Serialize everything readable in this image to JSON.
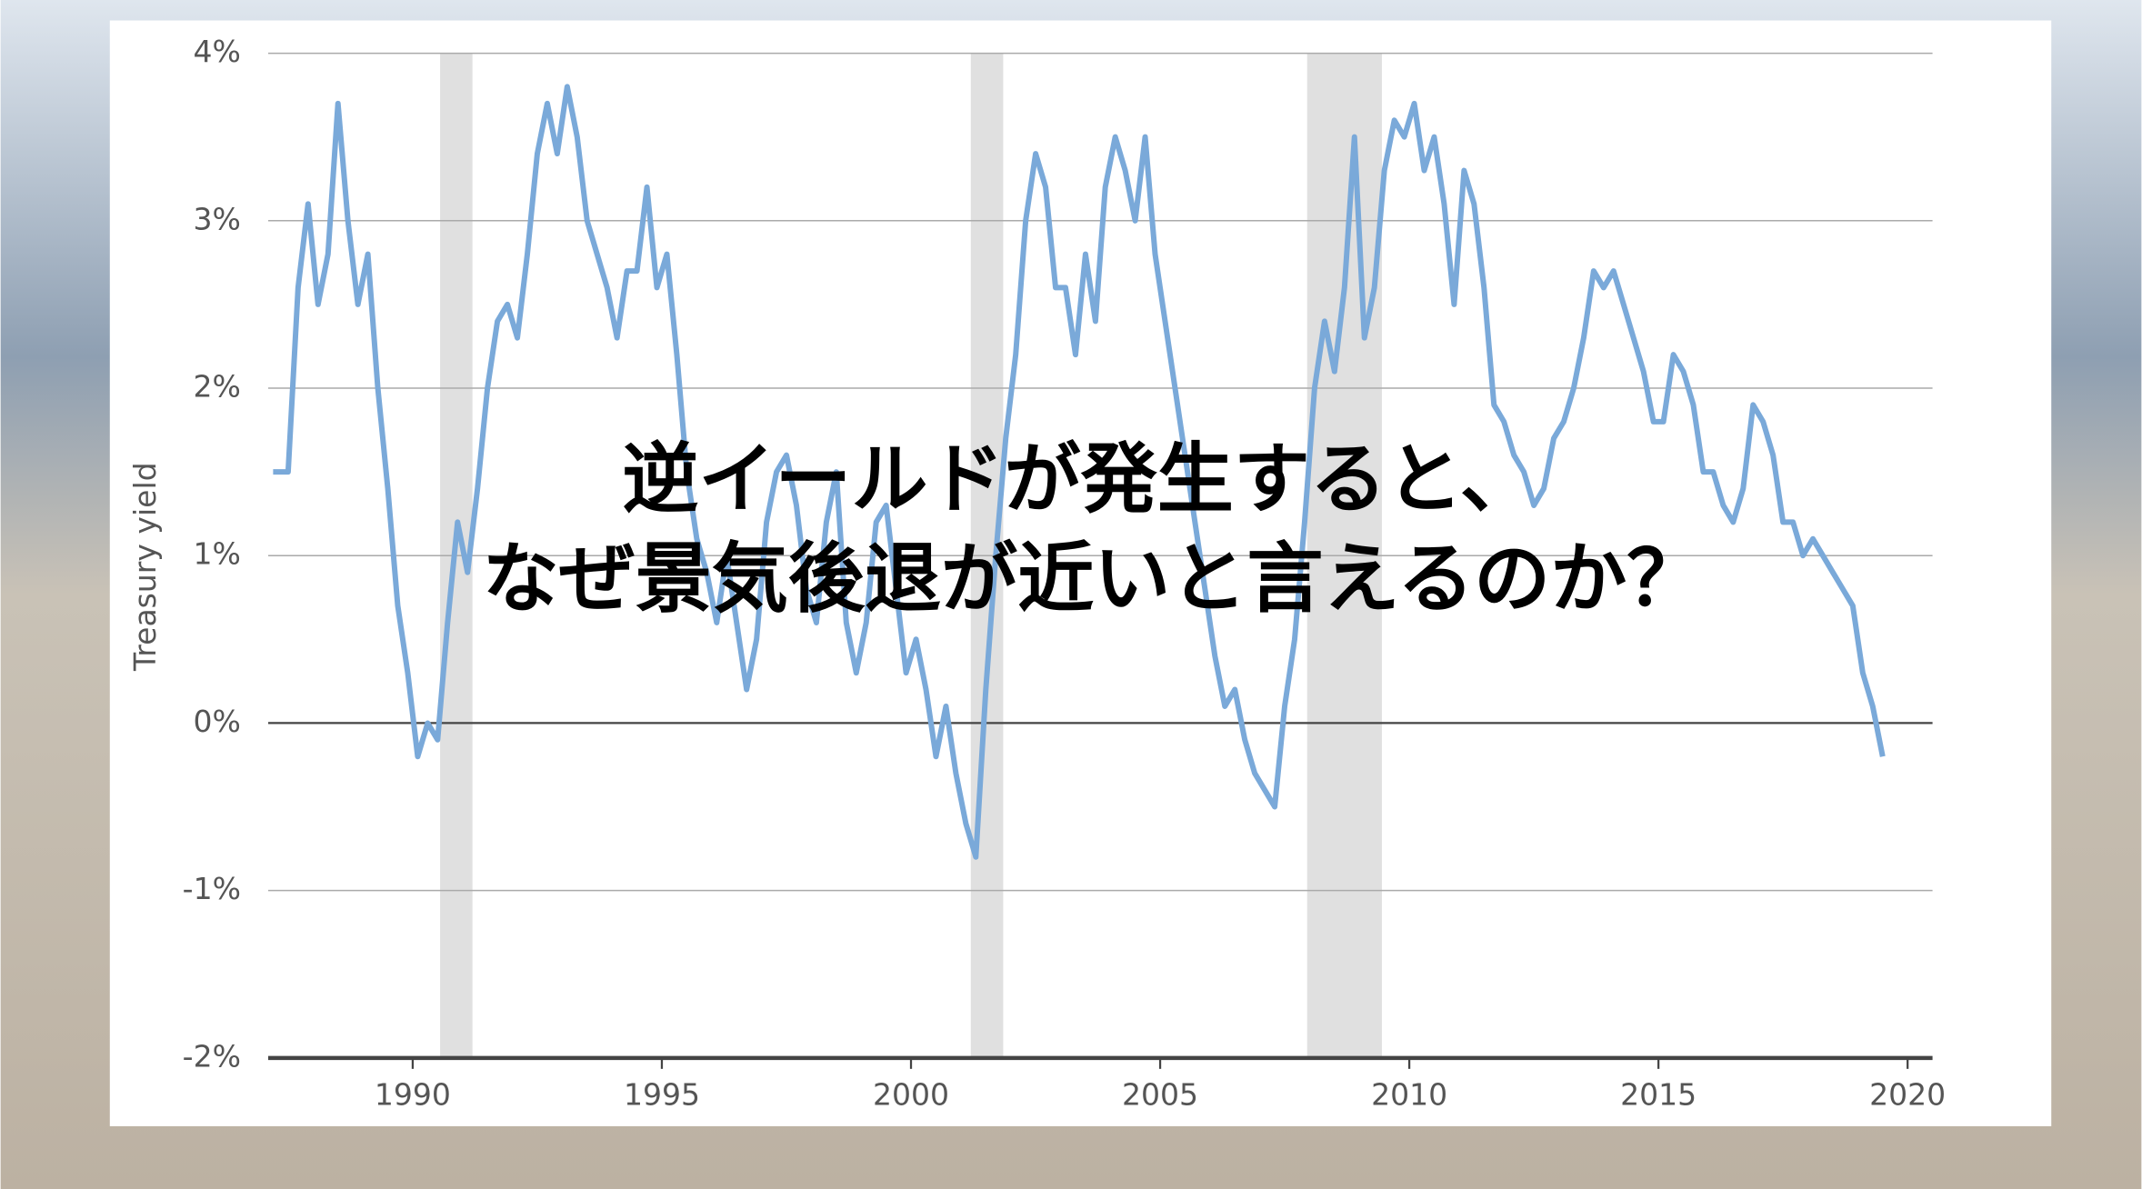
{
  "chart_data": {
    "type": "line",
    "title_lines": [
      "逆イールドが発生すると、",
      "なぜ景気後退が近いと言えるのか？"
    ],
    "ylabel": "Treasury yield",
    "xlim": [
      1987.1,
      2020.5
    ],
    "xticks": [
      1990,
      1995,
      2000,
      2005,
      2010,
      2015,
      2020
    ],
    "ylim": [
      -2,
      4
    ],
    "yticks": [
      {
        "value": -2,
        "label": "-2%"
      },
      {
        "value": -1,
        "label": "-1%"
      },
      {
        "value": 0,
        "label": "0%"
      },
      {
        "value": 1,
        "label": "1%"
      },
      {
        "value": 2,
        "label": "2%"
      },
      {
        "value": 3,
        "label": "3%"
      },
      {
        "value": 4,
        "label": "4%"
      }
    ],
    "grid": true,
    "shaded_ranges": [
      [
        1990.55,
        1991.2
      ],
      [
        2001.2,
        2001.85
      ],
      [
        2007.95,
        2009.45
      ]
    ],
    "x": [
      1987.2,
      1987.5,
      1987.7,
      1987.9,
      1988.1,
      1988.3,
      1988.5,
      1988.7,
      1988.9,
      1989.1,
      1989.3,
      1989.5,
      1989.7,
      1989.9,
      1990.1,
      1990.3,
      1990.5,
      1990.7,
      1990.9,
      1991.1,
      1991.3,
      1991.5,
      1991.7,
      1991.9,
      1992.1,
      1992.3,
      1992.5,
      1992.7,
      1992.9,
      1993.1,
      1993.3,
      1993.5,
      1993.7,
      1993.9,
      1994.1,
      1994.3,
      1994.5,
      1994.7,
      1994.9,
      1995.1,
      1995.3,
      1995.5,
      1995.7,
      1995.9,
      1996.1,
      1996.3,
      1996.5,
      1996.7,
      1996.9,
      1997.1,
      1997.3,
      1997.5,
      1997.7,
      1997.9,
      1998.1,
      1998.3,
      1998.5,
      1998.7,
      1998.9,
      1999.1,
      1999.3,
      1999.5,
      1999.7,
      1999.9,
      2000.1,
      2000.3,
      2000.5,
      2000.7,
      2000.9,
      2001.1,
      2001.3,
      2001.5,
      2001.7,
      2001.9,
      2002.1,
      2002.3,
      2002.5,
      2002.7,
      2002.9,
      2003.1,
      2003.3,
      2003.5,
      2003.7,
      2003.9,
      2004.1,
      2004.3,
      2004.5,
      2004.7,
      2004.9,
      2005.1,
      2005.3,
      2005.5,
      2005.7,
      2005.9,
      2006.1,
      2006.3,
      2006.5,
      2006.7,
      2006.9,
      2007.1,
      2007.3,
      2007.5,
      2007.7,
      2007.9,
      2008.1,
      2008.3,
      2008.5,
      2008.7,
      2008.9,
      2009.1,
      2009.3,
      2009.5,
      2009.7,
      2009.9,
      2010.1,
      2010.3,
      2010.5,
      2010.7,
      2010.9,
      2011.1,
      2011.3,
      2011.5,
      2011.7,
      2011.9,
      2012.1,
      2012.3,
      2012.5,
      2012.7,
      2012.9,
      2013.1,
      2013.3,
      2013.5,
      2013.7,
      2013.9,
      2014.1,
      2014.3,
      2014.5,
      2014.7,
      2014.9,
      2015.1,
      2015.3,
      2015.5,
      2015.7,
      2015.9,
      2016.1,
      2016.3,
      2016.5,
      2016.7,
      2016.9,
      2017.1,
      2017.3,
      2017.5,
      2017.7,
      2017.9,
      2018.1,
      2018.3,
      2018.5,
      2018.7,
      2018.9,
      2019.1,
      2019.3,
      2019.5
    ],
    "series": [
      {
        "name": "Treasury yield",
        "color": "#7aa9d9",
        "values": [
          1.5,
          1.5,
          2.6,
          3.1,
          2.5,
          2.8,
          3.7,
          3.0,
          2.5,
          2.8,
          2.0,
          1.4,
          0.7,
          0.3,
          -0.2,
          0.0,
          -0.1,
          0.6,
          1.2,
          0.9,
          1.4,
          2.0,
          2.4,
          2.5,
          2.3,
          2.8,
          3.4,
          3.7,
          3.4,
          3.8,
          3.5,
          3.0,
          2.8,
          2.6,
          2.3,
          2.7,
          2.7,
          3.2,
          2.6,
          2.8,
          2.2,
          1.5,
          1.1,
          0.9,
          0.6,
          1.0,
          0.6,
          0.2,
          0.5,
          1.2,
          1.5,
          1.6,
          1.3,
          0.8,
          0.6,
          1.2,
          1.5,
          0.6,
          0.3,
          0.6,
          1.2,
          1.3,
          0.8,
          0.3,
          0.5,
          0.2,
          -0.2,
          0.1,
          -0.3,
          -0.6,
          -0.8,
          0.2,
          1.0,
          1.7,
          2.2,
          3.0,
          3.4,
          3.2,
          2.6,
          2.6,
          2.2,
          2.8,
          2.4,
          3.2,
          3.5,
          3.3,
          3.0,
          3.5,
          2.8,
          2.4,
          2.0,
          1.6,
          1.2,
          0.8,
          0.4,
          0.1,
          0.2,
          -0.1,
          -0.3,
          -0.4,
          -0.5,
          0.1,
          0.5,
          1.2,
          2.0,
          2.4,
          2.1,
          2.6,
          3.5,
          2.3,
          2.6,
          3.3,
          3.6,
          3.5,
          3.7,
          3.3,
          3.5,
          3.1,
          2.5,
          3.3,
          3.1,
          2.6,
          1.9,
          1.8,
          1.6,
          1.5,
          1.3,
          1.4,
          1.7,
          1.8,
          2.0,
          2.3,
          2.7,
          2.6,
          2.7,
          2.5,
          2.3,
          2.1,
          1.8,
          1.8,
          2.2,
          2.1,
          1.9,
          1.5,
          1.5,
          1.3,
          1.2,
          1.4,
          1.9,
          1.8,
          1.6,
          1.2,
          1.2,
          1.0,
          1.1,
          1.0,
          0.9,
          0.8,
          0.7,
          0.3,
          0.1,
          -0.2
        ]
      }
    ]
  }
}
